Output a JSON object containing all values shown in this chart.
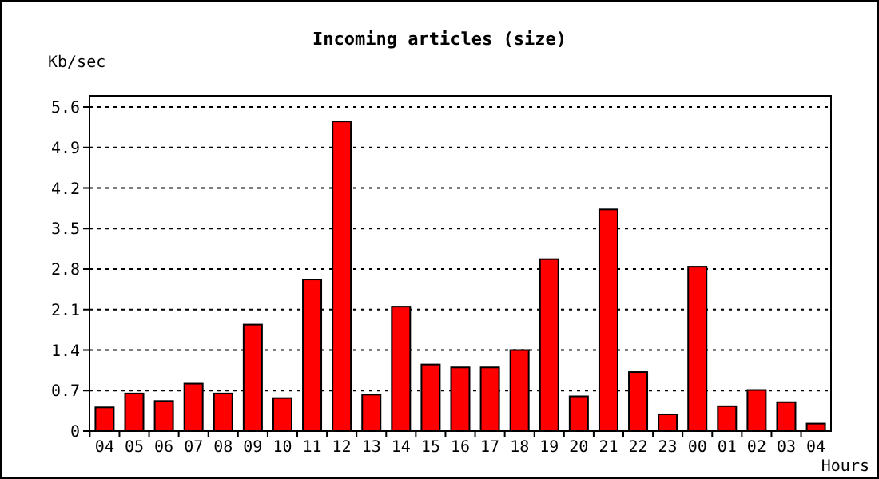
{
  "chart_data": {
    "type": "bar",
    "title": "Incoming articles (size)",
    "ylabel": "Kb/sec",
    "xlabel": "Hours",
    "categories": [
      "04",
      "05",
      "06",
      "07",
      "08",
      "09",
      "10",
      "11",
      "12",
      "13",
      "14",
      "15",
      "16",
      "17",
      "18",
      "19",
      "20",
      "21",
      "22",
      "23",
      "00",
      "01",
      "02",
      "03",
      "04"
    ],
    "values": [
      0.41,
      0.65,
      0.52,
      0.82,
      0.65,
      1.84,
      0.57,
      2.62,
      5.35,
      0.63,
      2.15,
      1.15,
      1.1,
      1.1,
      1.4,
      2.97,
      0.6,
      3.83,
      1.02,
      0.29,
      2.84,
      0.43,
      0.71,
      0.5,
      0.13
    ],
    "color": "#ff0000",
    "ylim": [
      0,
      5.6
    ],
    "yticks": [
      0,
      0.7,
      1.4,
      2.1,
      2.8,
      3.5,
      4.2,
      4.9,
      5.6
    ],
    "grid": "y"
  }
}
